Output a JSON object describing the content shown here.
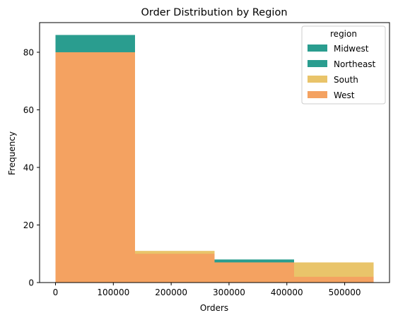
{
  "chart_data": {
    "type": "bar",
    "title": "Order Distribution by Region",
    "xlabel": "Orders",
    "ylabel": "Frequency",
    "xlim": [
      -27500,
      577500
    ],
    "ylim": [
      0,
      90.3
    ],
    "xticks": [
      0,
      100000,
      200000,
      300000,
      400000,
      500000
    ],
    "xtick_labels": [
      "0",
      "100000",
      "200000",
      "300000",
      "400000",
      "500000"
    ],
    "yticks": [
      0,
      20,
      40,
      60,
      80
    ],
    "ytick_labels": [
      "0",
      "20",
      "40",
      "60",
      "80"
    ],
    "bin_edges": [
      0,
      137500,
      275000,
      412500,
      550000
    ],
    "grid": false,
    "legend": {
      "title": "region",
      "placement": "top-right"
    },
    "series": [
      {
        "name": "Midwest",
        "color": "#2a9d8f",
        "values": [
          86,
          10,
          8,
          2
        ]
      },
      {
        "name": "Northeast",
        "color": "#2a9d8f",
        "values": [
          86,
          10,
          8,
          2
        ]
      },
      {
        "name": "South",
        "color": "#e9c46a",
        "values": [
          80,
          11,
          7,
          7
        ]
      },
      {
        "name": "West",
        "color": "#f4a261",
        "values": [
          80,
          10,
          7,
          2
        ]
      }
    ]
  }
}
